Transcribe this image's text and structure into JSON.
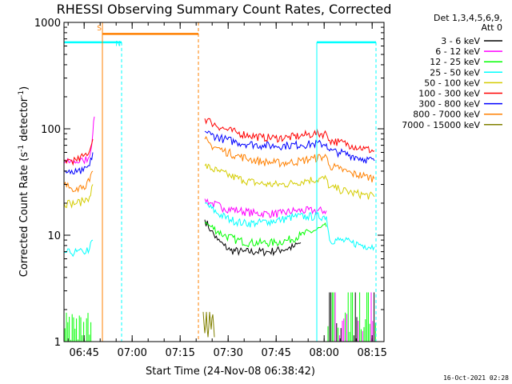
{
  "chart_data": {
    "type": "line",
    "title": "RHESSI Observing Summary Count Rates, Corrected",
    "xlabel": "Start Time (24-Nov-08 06:38:42)",
    "ylabel_main": "Corrected Count Rate (s",
    "ylabel_sup1": "-1",
    "ylabel_mid": " detector",
    "ylabel_sup2": "-1",
    "ylabel_end": ")",
    "yscale": "log",
    "ylim": [
      1,
      1000
    ],
    "xlim_minutes": [
      0,
      100
    ],
    "x_ticks": [
      {
        "t": 6.3,
        "label": "06:45"
      },
      {
        "t": 21.3,
        "label": "07:00"
      },
      {
        "t": 36.3,
        "label": "07:15"
      },
      {
        "t": 51.3,
        "label": "07:30"
      },
      {
        "t": 66.3,
        "label": "07:45"
      },
      {
        "t": 81.3,
        "label": "08:00"
      },
      {
        "t": 96.3,
        "label": "08:15"
      }
    ],
    "y_ticks": [
      {
        "v": 1,
        "label": "1"
      },
      {
        "v": 10,
        "label": "10"
      },
      {
        "v": 100,
        "label": "100"
      },
      {
        "v": 1000,
        "label": "1000"
      }
    ],
    "legend": {
      "header1": "Det 1,3,4,5,6,9,",
      "header2": "Att 0",
      "placement": "right"
    },
    "timestamp": "16-Oct-2021 02:28",
    "series": [
      {
        "name": "3 - 6 keV",
        "color": "#000000",
        "points": [
          [
            44,
            14
          ],
          [
            46,
            11
          ],
          [
            48,
            9
          ],
          [
            50,
            8
          ],
          [
            52,
            7.2
          ],
          [
            56,
            7
          ],
          [
            60,
            7
          ],
          [
            64,
            7
          ],
          [
            68,
            7.3
          ],
          [
            72,
            7.8
          ],
          [
            74,
            8.5
          ]
        ]
      },
      {
        "name": "6 - 12 keV",
        "color": "#ff00ff",
        "points": [
          [
            0,
            48
          ],
          [
            2,
            49
          ],
          [
            4,
            49
          ],
          [
            6,
            50
          ],
          [
            8,
            55
          ],
          [
            9,
            90
          ],
          [
            9.5,
            130
          ],
          [
            44,
            22
          ],
          [
            46,
            20
          ],
          [
            50,
            18
          ],
          [
            55,
            17
          ],
          [
            60,
            16
          ],
          [
            64,
            16
          ],
          [
            68,
            16
          ],
          [
            72,
            17
          ],
          [
            78,
            17
          ],
          [
            82,
            17
          ]
        ]
      },
      {
        "name": "12 - 25 keV",
        "color": "#00ff00",
        "points": [
          [
            44,
            13
          ],
          [
            46,
            12
          ],
          [
            50,
            10
          ],
          [
            54,
            9
          ],
          [
            58,
            8.5
          ],
          [
            62,
            8.5
          ],
          [
            66,
            8.5
          ],
          [
            70,
            9
          ],
          [
            74,
            10
          ],
          [
            78,
            11
          ],
          [
            82,
            12
          ]
        ]
      },
      {
        "name": "25 - 50 keV",
        "color": "#00ffff",
        "points": [
          [
            0,
            7
          ],
          [
            2,
            6.8
          ],
          [
            4,
            7
          ],
          [
            6,
            6.9
          ],
          [
            8,
            7.5
          ],
          [
            9,
            9
          ],
          [
            44,
            20
          ],
          [
            48,
            16
          ],
          [
            52,
            14
          ],
          [
            56,
            13
          ],
          [
            60,
            13
          ],
          [
            64,
            13.5
          ],
          [
            68,
            14
          ],
          [
            72,
            15
          ],
          [
            76,
            15
          ],
          [
            82,
            15
          ],
          [
            83,
            9
          ],
          [
            86,
            9
          ],
          [
            90,
            8.5
          ],
          [
            94,
            8
          ],
          [
            97,
            7.8
          ]
        ]
      },
      {
        "name": "50 - 100 keV",
        "color": "#d4cc00",
        "points": [
          [
            0,
            20
          ],
          [
            2,
            20
          ],
          [
            4,
            20
          ],
          [
            6,
            21
          ],
          [
            8,
            23
          ],
          [
            9,
            30
          ],
          [
            44,
            45
          ],
          [
            48,
            40
          ],
          [
            52,
            36
          ],
          [
            56,
            33
          ],
          [
            60,
            31
          ],
          [
            64,
            30
          ],
          [
            68,
            30
          ],
          [
            72,
            31
          ],
          [
            76,
            33
          ],
          [
            82,
            34
          ],
          [
            83,
            28
          ],
          [
            86,
            27
          ],
          [
            90,
            25
          ],
          [
            94,
            24
          ],
          [
            97,
            23
          ]
        ]
      },
      {
        "name": "100 - 300 keV",
        "color": "#ff0000",
        "points": [
          [
            0,
            50
          ],
          [
            2,
            51
          ],
          [
            4,
            50
          ],
          [
            6,
            55
          ],
          [
            8,
            62
          ],
          [
            9,
            80
          ],
          [
            44,
            125
          ],
          [
            46,
            115
          ],
          [
            50,
            100
          ],
          [
            54,
            92
          ],
          [
            58,
            87
          ],
          [
            62,
            83
          ],
          [
            66,
            82
          ],
          [
            70,
            83
          ],
          [
            74,
            86
          ],
          [
            78,
            90
          ],
          [
            82,
            90
          ],
          [
            83,
            78
          ],
          [
            86,
            75
          ],
          [
            90,
            70
          ],
          [
            94,
            65
          ],
          [
            97,
            62
          ]
        ]
      },
      {
        "name": "300 - 800 keV",
        "color": "#0000ff",
        "points": [
          [
            0,
            40
          ],
          [
            2,
            38
          ],
          [
            4,
            39
          ],
          [
            6,
            40
          ],
          [
            8,
            45
          ],
          [
            9,
            60
          ],
          [
            44,
            95
          ],
          [
            46,
            88
          ],
          [
            50,
            80
          ],
          [
            54,
            75
          ],
          [
            58,
            72
          ],
          [
            62,
            70
          ],
          [
            66,
            69
          ],
          [
            70,
            70
          ],
          [
            74,
            71
          ],
          [
            78,
            72
          ],
          [
            82,
            72
          ],
          [
            83,
            62
          ],
          [
            86,
            60
          ],
          [
            90,
            56
          ],
          [
            94,
            52
          ],
          [
            97,
            50
          ]
        ]
      },
      {
        "name": "800 - 7000 keV",
        "color": "#ff8000",
        "points": [
          [
            0,
            30
          ],
          [
            2,
            28
          ],
          [
            4,
            28
          ],
          [
            6,
            29
          ],
          [
            8,
            32
          ],
          [
            9,
            40
          ],
          [
            44,
            80
          ],
          [
            46,
            70
          ],
          [
            50,
            62
          ],
          [
            54,
            56
          ],
          [
            58,
            52
          ],
          [
            62,
            49
          ],
          [
            66,
            48
          ],
          [
            70,
            48
          ],
          [
            74,
            50
          ],
          [
            78,
            53
          ],
          [
            82,
            55
          ],
          [
            83,
            45
          ],
          [
            86,
            42
          ],
          [
            90,
            38
          ],
          [
            94,
            36
          ],
          [
            97,
            34
          ]
        ]
      },
      {
        "name": "7000 - 15000 keV",
        "color": "#808000",
        "points": [
          [
            43.5,
            1.9
          ],
          [
            44,
            1.2
          ],
          [
            44.5,
            1.9
          ],
          [
            45,
            1.1
          ],
          [
            45.5,
            1.9
          ],
          [
            46,
            1.3
          ],
          [
            46.5,
            1.8
          ],
          [
            47,
            1.1
          ]
        ]
      }
    ],
    "markers": [
      {
        "label": "S",
        "color": "#ff8000",
        "style": "solid",
        "t": 12
      },
      {
        "label": "N",
        "color": "#00ffff",
        "style": "dashed",
        "t": 18
      }
    ]
  }
}
